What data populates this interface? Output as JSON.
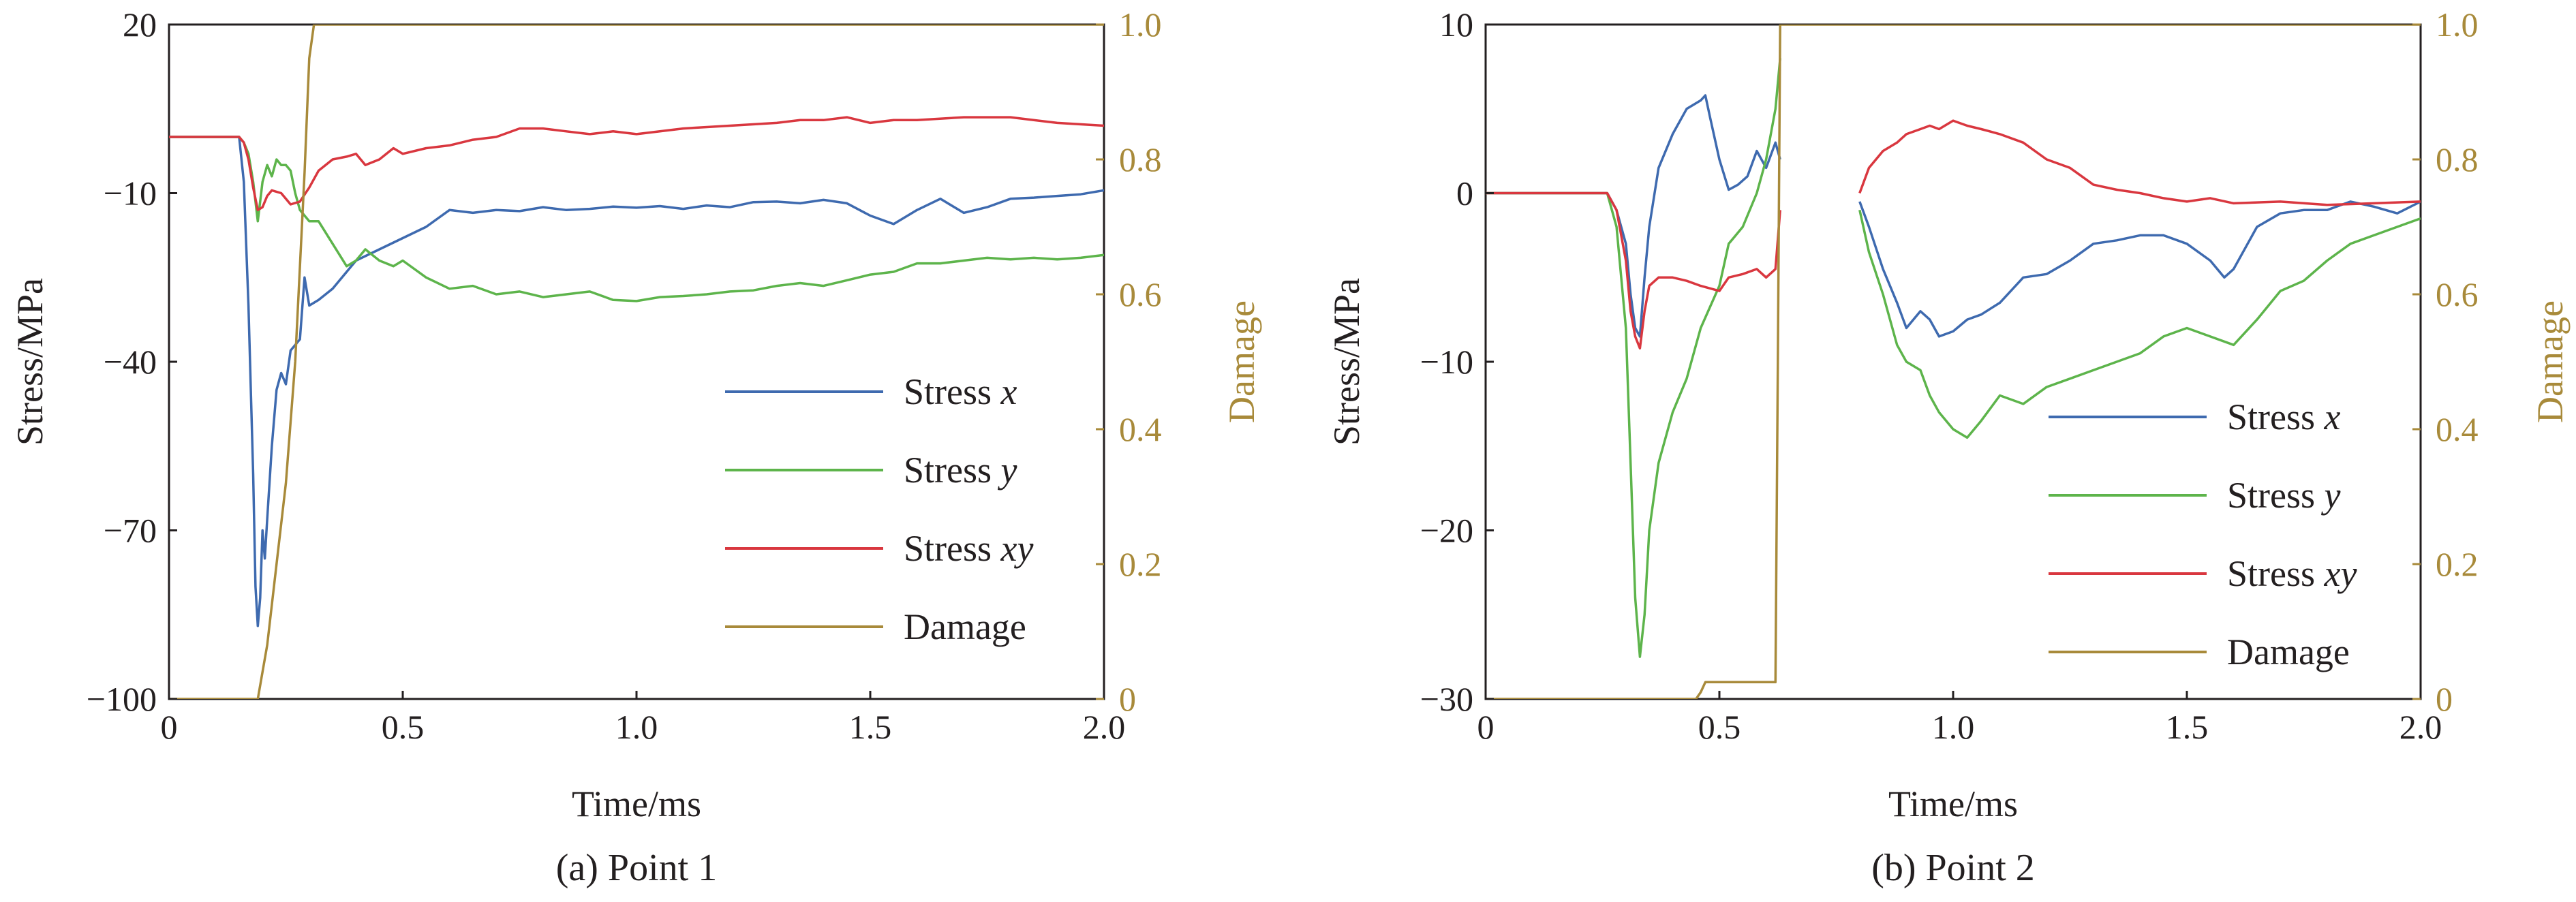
{
  "chart_data": [
    {
      "type": "line",
      "caption": "(a) Point 1",
      "xlabel": "Time/ms",
      "ylabel": "Stress/MPa",
      "y2label": "Damage",
      "xlim": [
        0,
        2.0
      ],
      "ylim": [
        -100,
        20
      ],
      "y2lim": [
        0,
        1.0
      ],
      "xticks": [
        "0",
        "0.5",
        "1.0",
        "1.5",
        "2.0"
      ],
      "xtick_values": [
        0,
        0.5,
        1.0,
        1.5,
        2.0
      ],
      "yticks": [
        "20",
        "−10",
        "−40",
        "−70",
        "−100"
      ],
      "ytick_values": [
        20,
        -10,
        -40,
        -70,
        -100
      ],
      "y2ticks": [
        "1.0",
        "0.8",
        "0.6",
        "0.4",
        "0.2",
        "0"
      ],
      "y2tick_values": [
        1.0,
        0.8,
        0.6,
        0.4,
        0.2,
        0
      ],
      "legend_position": "lower-right",
      "series": [
        {
          "name": "Stress x",
          "name_main": "Stress ",
          "name_var": "x",
          "axis": "left",
          "color": "#3e6aaf",
          "x": [
            0,
            0.15,
            0.16,
            0.17,
            0.18,
            0.185,
            0.19,
            0.195,
            0.2,
            0.205,
            0.21,
            0.22,
            0.23,
            0.24,
            0.25,
            0.26,
            0.28,
            0.29,
            0.3,
            0.32,
            0.35,
            0.38,
            0.4,
            0.45,
            0.5,
            0.55,
            0.6,
            0.65,
            0.7,
            0.75,
            0.8,
            0.85,
            0.9,
            0.95,
            1.0,
            1.05,
            1.1,
            1.15,
            1.2,
            1.25,
            1.3,
            1.35,
            1.4,
            1.45,
            1.5,
            1.55,
            1.6,
            1.65,
            1.7,
            1.75,
            1.8,
            1.85,
            1.9,
            1.95,
            2.0
          ],
          "y": [
            0,
            0,
            -8,
            -30,
            -60,
            -80,
            -87,
            -82,
            -70,
            -75,
            -68,
            -55,
            -45,
            -42,
            -44,
            -38,
            -36,
            -25,
            -30,
            -29,
            -27,
            -24,
            -22,
            -20,
            -18,
            -16,
            -13,
            -13.5,
            -13,
            -13.2,
            -12.5,
            -13,
            -12.8,
            -12.4,
            -12.6,
            -12.3,
            -12.8,
            -12.2,
            -12.5,
            -11.6,
            -11.5,
            -11.8,
            -11.2,
            -11.8,
            -14,
            -15.5,
            -13,
            -11,
            -13.5,
            -12.5,
            -11,
            -10.8,
            -10.5,
            -10.2,
            -9.5
          ]
        },
        {
          "name": "Stress y",
          "name_main": "Stress ",
          "name_var": "y",
          "axis": "left",
          "color": "#5db44b",
          "x": [
            0,
            0.15,
            0.16,
            0.17,
            0.18,
            0.19,
            0.2,
            0.21,
            0.22,
            0.23,
            0.24,
            0.25,
            0.26,
            0.27,
            0.28,
            0.3,
            0.32,
            0.35,
            0.38,
            0.4,
            0.42,
            0.45,
            0.48,
            0.5,
            0.55,
            0.6,
            0.65,
            0.7,
            0.75,
            0.8,
            0.85,
            0.9,
            0.95,
            1.0,
            1.05,
            1.1,
            1.15,
            1.2,
            1.25,
            1.3,
            1.35,
            1.4,
            1.45,
            1.5,
            1.55,
            1.6,
            1.65,
            1.7,
            1.75,
            1.8,
            1.85,
            1.9,
            1.95,
            2.0
          ],
          "y": [
            0,
            0,
            -1,
            -3,
            -8,
            -15,
            -8,
            -5,
            -7,
            -4,
            -5,
            -5,
            -6,
            -10,
            -13,
            -15,
            -15,
            -19,
            -23,
            -22,
            -20,
            -22,
            -23,
            -22,
            -25,
            -27,
            -26.5,
            -28,
            -27.5,
            -28.5,
            -28,
            -27.5,
            -29,
            -29.2,
            -28.5,
            -28.3,
            -28,
            -27.5,
            -27.3,
            -26.5,
            -26,
            -26.5,
            -25.5,
            -24.5,
            -24,
            -22.5,
            -22.5,
            -22,
            -21.5,
            -21.8,
            -21.5,
            -21.8,
            -21.5,
            -21.0
          ]
        },
        {
          "name": "Stress xy",
          "name_main": "Stress ",
          "name_var": "xy",
          "axis": "left",
          "color": "#d9373f",
          "x": [
            0,
            0.15,
            0.16,
            0.17,
            0.18,
            0.19,
            0.2,
            0.21,
            0.22,
            0.24,
            0.26,
            0.28,
            0.3,
            0.32,
            0.35,
            0.38,
            0.4,
            0.42,
            0.45,
            0.48,
            0.5,
            0.55,
            0.6,
            0.65,
            0.7,
            0.75,
            0.8,
            0.85,
            0.9,
            0.95,
            1.0,
            1.1,
            1.2,
            1.3,
            1.35,
            1.4,
            1.45,
            1.5,
            1.55,
            1.6,
            1.7,
            1.8,
            1.9,
            2.0
          ],
          "y": [
            0,
            0,
            -1,
            -4,
            -9,
            -13,
            -12.5,
            -10.5,
            -9.5,
            -10,
            -12,
            -11.5,
            -9,
            -6,
            -4,
            -3.5,
            -3,
            -5,
            -4,
            -2,
            -3,
            -2,
            -1.5,
            -0.5,
            0,
            1.5,
            1.5,
            1.0,
            0.5,
            1.0,
            0.5,
            1.5,
            2.0,
            2.5,
            3.0,
            3.0,
            3.5,
            2.5,
            3.0,
            3.0,
            3.5,
            3.5,
            2.5,
            2.0
          ]
        },
        {
          "name": "Damage",
          "name_main": "Damage",
          "name_var": "",
          "axis": "right",
          "color": "#a88a3a",
          "x": [
            0,
            0.19,
            0.21,
            0.23,
            0.25,
            0.27,
            0.29,
            0.3,
            0.31,
            2.0
          ],
          "y": [
            0,
            0,
            0.08,
            0.2,
            0.32,
            0.5,
            0.78,
            0.95,
            1.0,
            1.0
          ]
        }
      ]
    },
    {
      "type": "line",
      "caption": "(b) Point 2",
      "xlabel": "Time/ms",
      "ylabel": "Stress/MPa",
      "y2label": "Damage",
      "xlim": [
        0,
        2.0
      ],
      "ylim": [
        -30,
        10
      ],
      "y2lim": [
        0,
        1.0
      ],
      "xticks": [
        "0",
        "0.5",
        "1.0",
        "1.5",
        "2.0"
      ],
      "xtick_values": [
        0,
        0.5,
        1.0,
        1.5,
        2.0
      ],
      "yticks": [
        "10",
        "0",
        "−10",
        "−20",
        "−30"
      ],
      "ytick_values": [
        10,
        0,
        -10,
        -20,
        -30
      ],
      "y2ticks": [
        "1.0",
        "0.8",
        "0.6",
        "0.4",
        "0.2",
        "0"
      ],
      "y2tick_values": [
        1.0,
        0.8,
        0.6,
        0.4,
        0.2,
        0
      ],
      "legend_position": "lower-right",
      "series": [
        {
          "name": "Stress x",
          "name_main": "Stress ",
          "name_var": "x",
          "axis": "left",
          "color": "#3e6aaf",
          "segments": [
            {
              "x": [
                0,
                0.26,
                0.28,
                0.3,
                0.31,
                0.32,
                0.33,
                0.34,
                0.35,
                0.37,
                0.4,
                0.43,
                0.46,
                0.47,
                0.48,
                0.5,
                0.52,
                0.54,
                0.56,
                0.58,
                0.6,
                0.62,
                0.63
              ],
              "y": [
                0,
                0,
                -1,
                -3,
                -6,
                -8,
                -8.5,
                -5,
                -2,
                1.5,
                3.5,
                5,
                5.5,
                5.8,
                4.5,
                2,
                0.2,
                0.5,
                1,
                2.5,
                1.5,
                3,
                2
              ]
            },
            {
              "x": [
                0.8,
                0.82,
                0.85,
                0.88,
                0.9,
                0.93,
                0.95,
                0.97,
                1.0,
                1.03,
                1.06,
                1.1,
                1.15,
                1.2,
                1.25,
                1.3,
                1.35,
                1.4,
                1.45,
                1.5,
                1.55,
                1.58,
                1.6,
                1.65,
                1.7,
                1.75,
                1.8,
                1.85,
                1.9,
                1.95,
                2.0
              ],
              "y": [
                -0.5,
                -2,
                -4.5,
                -6.5,
                -8,
                -7,
                -7.5,
                -8.5,
                -8.2,
                -7.5,
                -7.2,
                -6.5,
                -5,
                -4.8,
                -4,
                -3,
                -2.8,
                -2.5,
                -2.5,
                -3,
                -4,
                -5,
                -4.5,
                -2,
                -1.2,
                -1,
                -1,
                -0.5,
                -0.8,
                -1.2,
                -0.5
              ]
            }
          ]
        },
        {
          "name": "Stress y",
          "name_main": "Stress ",
          "name_var": "y",
          "axis": "left",
          "color": "#5db44b",
          "segments": [
            {
              "x": [
                0,
                0.26,
                0.28,
                0.3,
                0.31,
                0.32,
                0.33,
                0.34,
                0.35,
                0.37,
                0.4,
                0.43,
                0.46,
                0.5,
                0.52,
                0.55,
                0.58,
                0.6,
                0.62,
                0.63
              ],
              "y": [
                0,
                0,
                -2,
                -8,
                -16,
                -24,
                -27.5,
                -25,
                -20,
                -16,
                -13,
                -11,
                -8,
                -5.5,
                -3,
                -2,
                0,
                2,
                5,
                8
              ]
            },
            {
              "x": [
                0.8,
                0.82,
                0.85,
                0.88,
                0.9,
                0.93,
                0.95,
                0.97,
                1.0,
                1.03,
                1.06,
                1.1,
                1.15,
                1.2,
                1.25,
                1.3,
                1.35,
                1.4,
                1.45,
                1.5,
                1.55,
                1.6,
                1.65,
                1.7,
                1.75,
                1.8,
                1.85,
                1.9,
                1.95,
                2.0
              ],
              "y": [
                -1,
                -3.5,
                -6,
                -9,
                -10,
                -10.5,
                -12,
                -13,
                -14,
                -14.5,
                -13.5,
                -12,
                -12.5,
                -11.5,
                -11,
                -10.5,
                -10,
                -9.5,
                -8.5,
                -8,
                -8.5,
                -9,
                -7.5,
                -5.8,
                -5.2,
                -4,
                -3,
                -2.5,
                -2,
                -1.5
              ]
            }
          ]
        },
        {
          "name": "Stress xy",
          "name_main": "Stress ",
          "name_var": "xy",
          "axis": "left",
          "color": "#d9373f",
          "segments": [
            {
              "x": [
                0,
                0.26,
                0.28,
                0.3,
                0.31,
                0.32,
                0.33,
                0.34,
                0.35,
                0.37,
                0.4,
                0.43,
                0.46,
                0.5,
                0.52,
                0.55,
                0.58,
                0.6,
                0.62,
                0.63
              ],
              "y": [
                0,
                0,
                -1,
                -4,
                -7,
                -8.5,
                -9.2,
                -7,
                -5.5,
                -5,
                -5,
                -5.2,
                -5.5,
                -5.8,
                -5,
                -4.8,
                -4.5,
                -5,
                -4.5,
                -1
              ]
            },
            {
              "x": [
                0.8,
                0.82,
                0.85,
                0.88,
                0.9,
                0.93,
                0.95,
                0.97,
                1.0,
                1.03,
                1.06,
                1.1,
                1.15,
                1.2,
                1.25,
                1.3,
                1.35,
                1.4,
                1.45,
                1.5,
                1.55,
                1.6,
                1.7,
                1.8,
                1.9,
                2.0
              ],
              "y": [
                0,
                1.5,
                2.5,
                3.0,
                3.5,
                3.8,
                4.0,
                3.8,
                4.3,
                4.0,
                3.8,
                3.5,
                3.0,
                2.0,
                1.5,
                0.5,
                0.2,
                0,
                -0.3,
                -0.5,
                -0.3,
                -0.6,
                -0.5,
                -0.7,
                -0.6,
                -0.5
              ]
            }
          ]
        },
        {
          "name": "Damage",
          "name_main": "Damage",
          "name_var": "",
          "axis": "right",
          "color": "#a88a3a",
          "x": [
            0,
            0.45,
            0.46,
            0.47,
            0.48,
            0.62,
            0.625,
            0.63,
            2.0
          ],
          "y": [
            0,
            0,
            0.01,
            0.025,
            0.025,
            0.025,
            0.5,
            1.0,
            1.0
          ]
        }
      ]
    }
  ]
}
